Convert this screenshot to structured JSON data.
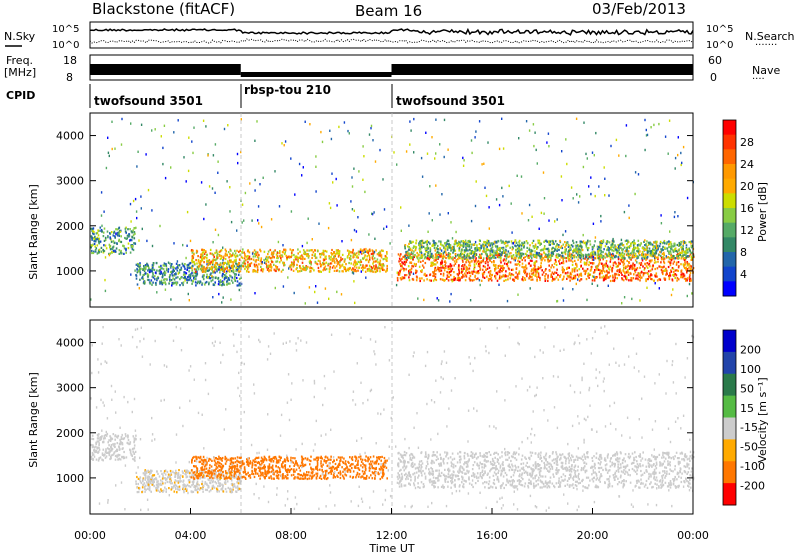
{
  "header": {
    "site": "Blackstone (fitACF)",
    "beam": "Beam 16",
    "date": "03/Feb/2013"
  },
  "panels": {
    "nsky_label": "N.Sky",
    "nsearch_label": "N.Search",
    "nsearch_dots": "·······",
    "freq_label_1": "Freq.",
    "freq_label_2": "[MHz]",
    "nave_label": "Nave",
    "nave_dots": "····",
    "cpid_label": "CPID",
    "nsky_ticks": [
      "10^5",
      "10^0"
    ],
    "freq_ticks": [
      "18",
      "8"
    ],
    "nave_ticks": [
      "60",
      "0"
    ],
    "cpid_segments": [
      {
        "label": "twofsound 3501",
        "start_h": 0,
        "end_h": 6.0
      },
      {
        "label": "rbsp-tou 210",
        "start_h": 6.0,
        "end_h": 12.0
      },
      {
        "label": "twofsound 3501",
        "start_h": 12.0,
        "end_h": 24
      }
    ]
  },
  "colorbars": {
    "power": {
      "label": "Power [dB]",
      "ticks": [
        "28",
        "24",
        "20",
        "16",
        "12",
        "8",
        "4"
      ],
      "colors": [
        "#ff0000",
        "#ff3300",
        "#ff6600",
        "#ff9900",
        "#ffaa00",
        "#ccdd00",
        "#88cc44",
        "#55aa66",
        "#338866",
        "#2266aa",
        "#1144cc",
        "#0000ff"
      ]
    },
    "velocity": {
      "label": "Velocity [m s⁻¹]",
      "ticks": [
        "200",
        "100",
        "50",
        "15",
        "-15",
        "-50",
        "-100",
        "-200"
      ],
      "colors": [
        "#0000cc",
        "#2244aa",
        "#2a7a4a",
        "#55bb44",
        "#cccccc",
        "#ffaa00",
        "#ff7700",
        "#ff0000"
      ]
    }
  },
  "chart_data": [
    {
      "type": "heatmap",
      "name": "Power",
      "ylabel": "Slant Range [km]",
      "xlim": [
        0,
        24
      ],
      "ylim": [
        200,
        4500
      ],
      "yticks": [
        1000,
        2000,
        3000,
        4000
      ],
      "bands": [
        {
          "start_h": 0.0,
          "end_h": 1.8,
          "y_lo": 1400,
          "y_hi": 2000,
          "value": 10
        },
        {
          "start_h": 1.8,
          "end_h": 6.0,
          "y_lo": 700,
          "y_hi": 1200,
          "value": 8
        },
        {
          "start_h": 4.0,
          "end_h": 11.8,
          "y_lo": 1000,
          "y_hi": 1500,
          "value": 20
        },
        {
          "start_h": 12.2,
          "end_h": 24.0,
          "y_lo": 800,
          "y_hi": 1400,
          "value": 24
        },
        {
          "start_h": 12.5,
          "end_h": 24.0,
          "y_lo": 1300,
          "y_hi": 1700,
          "value": 12
        }
      ]
    },
    {
      "type": "heatmap",
      "name": "Velocity",
      "xlabel": "Time UT",
      "ylabel": "Slant Range [km]",
      "xlim": [
        0,
        24
      ],
      "ylim": [
        200,
        4500
      ],
      "yticks": [
        1000,
        2000,
        3000,
        4000
      ],
      "xticks": [
        "00:00",
        "04:00",
        "08:00",
        "12:00",
        "16:00",
        "20:00",
        "00:00"
      ],
      "bands": [
        {
          "start_h": 0.0,
          "end_h": 1.8,
          "y_lo": 1400,
          "y_hi": 2000,
          "value": 0
        },
        {
          "start_h": 1.8,
          "end_h": 6.0,
          "y_lo": 700,
          "y_hi": 1200,
          "value": -10
        },
        {
          "start_h": 4.0,
          "end_h": 11.8,
          "y_lo": 1000,
          "y_hi": 1500,
          "value": -60
        },
        {
          "start_h": 12.2,
          "end_h": 24.0,
          "y_lo": 800,
          "y_hi": 1600,
          "value": 0
        }
      ]
    }
  ]
}
